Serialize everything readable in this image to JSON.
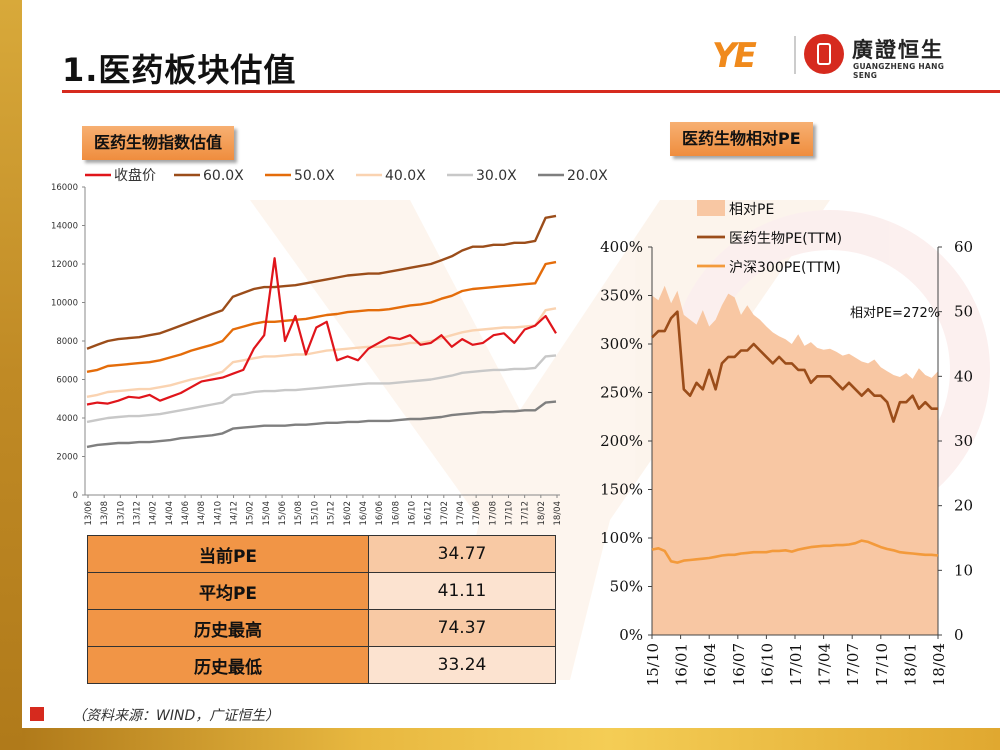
{
  "page": {
    "title": "1.医药板块估值",
    "source": "（资料来源：WIND，广证恒生）"
  },
  "logo": {
    "ye": "YE",
    "cn": "廣證恒生",
    "en": "GUANGZHENG HANG SENG"
  },
  "colors": {
    "accent": "#d62a1e",
    "orange": "#f19546",
    "gold": "#e8b840"
  },
  "stats_table": {
    "rows": [
      {
        "label": "当前PE",
        "value": "34.77"
      },
      {
        "label": "平均PE",
        "value": "41.11"
      },
      {
        "label": "历史最高",
        "value": "74.37"
      },
      {
        "label": "历史最低",
        "value": "33.24"
      }
    ]
  },
  "chart_data": [
    {
      "id": "pe-band",
      "type": "line",
      "title": "医药生物指数估值",
      "ylim": [
        0,
        16000
      ],
      "y_ticks": [
        "0",
        "2000",
        "4000",
        "6000",
        "8000",
        "10000",
        "12000",
        "14000",
        "16000"
      ],
      "x_ticks": [
        "13/06",
        "13/08",
        "13/10",
        "13/12",
        "14/02",
        "14/04",
        "14/06",
        "14/08",
        "14/10",
        "14/12",
        "15/02",
        "15/04",
        "15/06",
        "15/08",
        "15/10",
        "15/12",
        "16/02",
        "16/04",
        "16/06",
        "16/08",
        "16/10",
        "16/12",
        "17/02",
        "17/04",
        "17/06",
        "17/08",
        "17/10",
        "17/12",
        "18/02",
        "18/04"
      ],
      "legend": "top",
      "series": [
        {
          "name": "收盘价",
          "color": "#e0151b",
          "values": [
            4700,
            4800,
            4750,
            4900,
            5100,
            5050,
            5200,
            4900,
            5100,
            5300,
            5600,
            5900,
            6000,
            6100,
            6300,
            6500,
            7600,
            8300,
            12300,
            8000,
            9300,
            7300,
            8700,
            9000,
            7000,
            7200,
            7000,
            7600,
            7900,
            8200,
            8100,
            8300,
            7800,
            7900,
            8300,
            7700,
            8100,
            7800,
            7900,
            8300,
            8400,
            7900,
            8600,
            8800,
            9300,
            8400
          ]
        },
        {
          "name": "60.0X",
          "color": "#9b4d1a",
          "values": [
            7600,
            7800,
            8000,
            8100,
            8150,
            8200,
            8300,
            8400,
            8600,
            8800,
            9000,
            9200,
            9400,
            9600,
            10300,
            10500,
            10700,
            10800,
            10800,
            10850,
            10900,
            11000,
            11100,
            11200,
            11300,
            11400,
            11450,
            11500,
            11500,
            11600,
            11700,
            11800,
            11900,
            12000,
            12200,
            12400,
            12700,
            12900,
            12900,
            13000,
            13000,
            13100,
            13100,
            13200,
            14400,
            14500
          ]
        },
        {
          "name": "50.0X",
          "color": "#e46c0a",
          "values": [
            6400,
            6500,
            6700,
            6750,
            6800,
            6850,
            6900,
            7000,
            7150,
            7300,
            7500,
            7650,
            7800,
            8000,
            8600,
            8750,
            8900,
            9000,
            9000,
            9050,
            9100,
            9150,
            9250,
            9350,
            9400,
            9500,
            9550,
            9600,
            9600,
            9650,
            9750,
            9850,
            9900,
            10000,
            10200,
            10350,
            10600,
            10700,
            10750,
            10800,
            10850,
            10900,
            10950,
            11000,
            12000,
            12100
          ]
        },
        {
          "name": "40.0X",
          "color": "#fad3b1",
          "values": [
            5100,
            5200,
            5350,
            5400,
            5450,
            5500,
            5500,
            5600,
            5700,
            5850,
            6000,
            6100,
            6250,
            6400,
            6900,
            7000,
            7100,
            7200,
            7200,
            7250,
            7300,
            7300,
            7400,
            7500,
            7550,
            7600,
            7650,
            7700,
            7700,
            7750,
            7800,
            7900,
            7900,
            8000,
            8150,
            8300,
            8450,
            8550,
            8600,
            8650,
            8700,
            8700,
            8750,
            8800,
            9600,
            9700
          ]
        },
        {
          "name": "30.0X",
          "color": "#c8c8c8",
          "values": [
            3800,
            3900,
            4000,
            4050,
            4100,
            4100,
            4150,
            4200,
            4300,
            4400,
            4500,
            4600,
            4700,
            4800,
            5200,
            5250,
            5350,
            5400,
            5400,
            5450,
            5450,
            5500,
            5550,
            5600,
            5650,
            5700,
            5750,
            5800,
            5800,
            5800,
            5850,
            5900,
            5950,
            6000,
            6100,
            6200,
            6350,
            6400,
            6450,
            6500,
            6500,
            6550,
            6550,
            6600,
            7200,
            7250
          ]
        },
        {
          "name": "20.0X",
          "color": "#7f7f7f",
          "values": [
            2500,
            2600,
            2650,
            2700,
            2700,
            2750,
            2750,
            2800,
            2850,
            2950,
            3000,
            3050,
            3100,
            3200,
            3450,
            3500,
            3550,
            3600,
            3600,
            3600,
            3650,
            3650,
            3700,
            3750,
            3750,
            3800,
            3800,
            3850,
            3850,
            3850,
            3900,
            3950,
            3950,
            4000,
            4050,
            4150,
            4200,
            4250,
            4300,
            4300,
            4350,
            4350,
            4400,
            4400,
            4800,
            4850
          ]
        }
      ]
    },
    {
      "id": "relative-pe",
      "type": "area",
      "title": "医药生物相对PE",
      "ylim_left": [
        0,
        400
      ],
      "ylim_right": [
        0,
        60
      ],
      "y_ticks_left": [
        "0%",
        "50%",
        "100%",
        "150%",
        "200%",
        "250%",
        "300%",
        "350%",
        "400%"
      ],
      "y_ticks_right": [
        "0",
        "10",
        "20",
        "30",
        "40",
        "50",
        "60"
      ],
      "x_ticks": [
        "15/10",
        "16/01",
        "16/04",
        "16/07",
        "16/10",
        "17/01",
        "17/04",
        "17/07",
        "17/10",
        "18/01",
        "18/04"
      ],
      "annotation": "相对PE=272%",
      "legend": "top-left",
      "series": [
        {
          "name": "相对PE",
          "axis": "left",
          "color": "#f8c7a3",
          "values": [
            350,
            345,
            360,
            342,
            355,
            330,
            325,
            320,
            335,
            318,
            325,
            340,
            352,
            348,
            330,
            340,
            330,
            325,
            318,
            312,
            308,
            305,
            300,
            310,
            298,
            302,
            296,
            294,
            295,
            292,
            288,
            290,
            286,
            282,
            280,
            284,
            276,
            272,
            268,
            266,
            270,
            264,
            275,
            268,
            265,
            272
          ]
        },
        {
          "name": "医药生物PE(TTM)",
          "axis": "right",
          "color": "#9b4d1a",
          "values": [
            46,
            47,
            47,
            49,
            50,
            38,
            37,
            39,
            38,
            41,
            38,
            42,
            43,
            43,
            44,
            44,
            45,
            44,
            43,
            42,
            43,
            42,
            42,
            41,
            41,
            39,
            40,
            40,
            40,
            39,
            38,
            39,
            38,
            37,
            38,
            37,
            37,
            36,
            33,
            36,
            36,
            37,
            35,
            36,
            35,
            35
          ]
        },
        {
          "name": "沪深300PE(TTM)",
          "axis": "right",
          "color": "#f39a3b",
          "values": [
            13.2,
            13.4,
            13.0,
            11.4,
            11.2,
            11.5,
            11.6,
            11.7,
            11.8,
            11.9,
            12.1,
            12.3,
            12.4,
            12.4,
            12.6,
            12.7,
            12.8,
            12.8,
            12.8,
            13.0,
            13.0,
            13.1,
            12.9,
            13.2,
            13.4,
            13.6,
            13.7,
            13.8,
            13.8,
            13.9,
            13.9,
            14.0,
            14.2,
            14.6,
            14.4,
            14.0,
            13.6,
            13.3,
            13.1,
            12.8,
            12.7,
            12.6,
            12.5,
            12.4,
            12.4,
            12.3
          ]
        }
      ]
    }
  ]
}
